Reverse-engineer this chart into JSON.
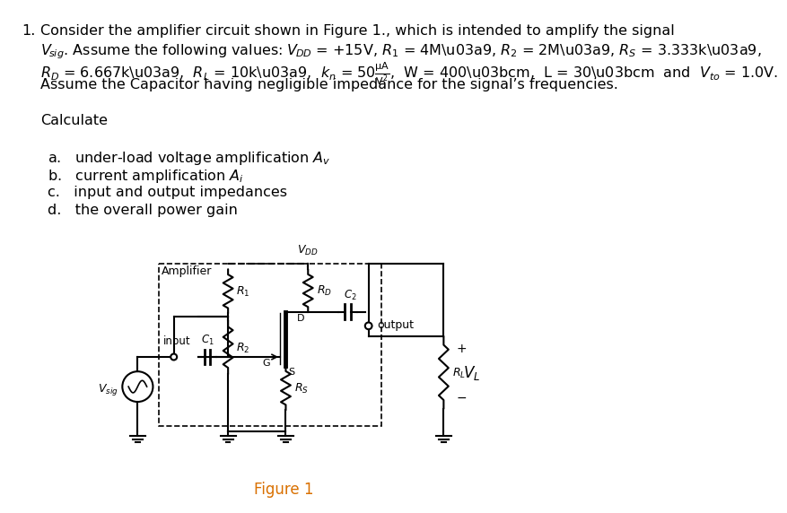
{
  "background": "#ffffff",
  "text_color": "#000000",
  "figure_color": "#d97000",
  "line0": "Consider the amplifier circuit shown in Figure 1., which is intended to amplify the signal",
  "figure_label": "Figure 1"
}
